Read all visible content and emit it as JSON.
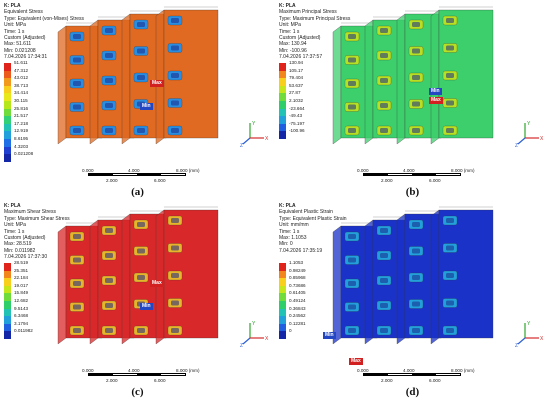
{
  "scale": {
    "top": [
      "0.000",
      "4.000",
      "8.000 (mm)"
    ],
    "bottom": [
      "2.000",
      "6.000"
    ]
  },
  "axes": {
    "x": "X",
    "y": "Y",
    "z": "Z"
  },
  "panels": [
    {
      "id": "a",
      "caption": "(a)",
      "lines": [
        "K: PLA",
        "Equivalent Stress",
        "Type: Equivalent (von-Mises) Stress",
        "Unit: MPa",
        "Time: 1 s",
        "Custom (Adjusted)",
        "Max: 51.611",
        "Min: 0.021208",
        "7.04.2026 17:34:31"
      ],
      "legend": [
        "51.611",
        "47.312",
        "43.012",
        "38.713",
        "34.414",
        "30.115",
        "25.816",
        "21.517",
        "17.218",
        "12.919",
        "8.6195",
        "4.3203",
        "0.021208"
      ],
      "colors": [
        "#e0241c",
        "#ec5a1c",
        "#f29a1c",
        "#f7cf1c",
        "#e8e81c",
        "#b6e61c",
        "#6fdc3c",
        "#32d178",
        "#22c2b4",
        "#22a0dc",
        "#1f6fe6",
        "#1f3fd0",
        "#1426a8"
      ],
      "max_label": "Max",
      "min_label": "Min",
      "body_color": "#e06a22",
      "accent_color": "#2a8de0"
    },
    {
      "id": "b",
      "caption": "(b)",
      "lines": [
        "K: PLA",
        "Maximum Principal Stress",
        "Type: Maximum Principal Stress",
        "Unit: MPa",
        "Time: 1 s",
        "Custom (Adjusted)",
        "Max: 130.94",
        "Min: -100.96",
        "7.04.2026 17:37:57"
      ],
      "legend": [
        "130.94",
        "105.17",
        "79.404",
        "53.637",
        "27.87",
        "2.1032",
        "-23.664",
        "-49.43",
        "-75.197",
        "-100.96"
      ],
      "colors": [
        "#e0241c",
        "#f2861c",
        "#f7cf1c",
        "#c6e61c",
        "#6fdc3c",
        "#2ecf6a",
        "#22c2b4",
        "#22a0dc",
        "#1f5fe0",
        "#1426a8"
      ],
      "max_label": "Max",
      "min_label": "Min",
      "body_color": "#3ccf6c",
      "accent_color": "#b7e022"
    },
    {
      "id": "c",
      "caption": "(c)",
      "lines": [
        "K: PLA",
        "Maximum Shear Stress",
        "Type: Maximum Shear Stress",
        "Unit: MPa",
        "Time: 1 s",
        "Custom (Adjusted)",
        "Max: 28.519",
        "Min: 0.011982",
        "7.04.2026 17:37:30"
      ],
      "legend": [
        "28.519",
        "25.351",
        "22.184",
        "19.017",
        "15.849",
        "12.682",
        "9.5143",
        "6.3468",
        "3.1794",
        "0.011982"
      ],
      "colors": [
        "#e0241c",
        "#f2861c",
        "#f7cf1c",
        "#c6e61c",
        "#6fdc3c",
        "#2ecf6a",
        "#22c2b4",
        "#22a0dc",
        "#1f5fe0",
        "#1426a8"
      ],
      "max_label": "Max",
      "min_label": "Min",
      "body_color": "#d8282a",
      "accent_color": "#e8b42a"
    },
    {
      "id": "d",
      "caption": "(d)",
      "lines": [
        "K: PLA",
        "Equivalent Plastic Strain",
        "Type: Equivalent Plastic Strain",
        "Unit: mm/mm",
        "Time: 1 s",
        "Max: 1.1053",
        "Min: 0",
        "7.04.2026 17:35:19"
      ],
      "legend": [
        "1.1053",
        "0.98249",
        "0.85968",
        "0.73686",
        "0.61405",
        "0.49124",
        "0.36843",
        "0.24562",
        "0.12281",
        "0"
      ],
      "colors": [
        "#e0241c",
        "#f2861c",
        "#f7cf1c",
        "#c6e61c",
        "#6fdc3c",
        "#2ecf6a",
        "#22c2b4",
        "#22a0dc",
        "#1f5fe0",
        "#1426a8"
      ],
      "max_label": "Max",
      "min_label": "Min",
      "body_color": "#1a32c8",
      "accent_color": "#22a0dc"
    }
  ]
}
